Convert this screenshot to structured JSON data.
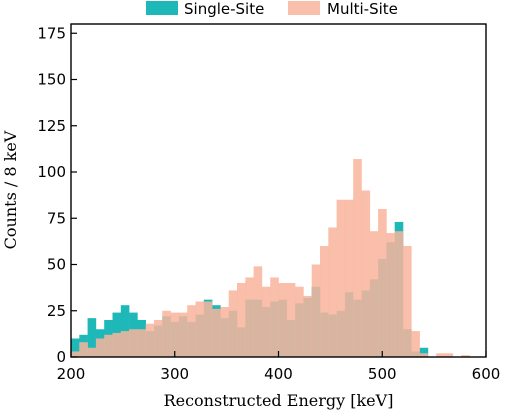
{
  "chart_data": {
    "type": "bar",
    "subtype": "overlaid-histogram",
    "xlabel": "Reconstructed Energy [keV]",
    "ylabel": "Counts / 8 keV",
    "xlim": [
      200,
      600
    ],
    "ylim": [
      0,
      180
    ],
    "xticks": [
      200,
      300,
      400,
      500,
      600
    ],
    "yticks": [
      0,
      25,
      50,
      75,
      100,
      125,
      150,
      175
    ],
    "bin_width": 8,
    "bin_edges_start": [
      200,
      208,
      216,
      224,
      232,
      240,
      248,
      256,
      264,
      272,
      280,
      288,
      296,
      304,
      312,
      320,
      328,
      336,
      344,
      352,
      360,
      368,
      376,
      384,
      392,
      400,
      408,
      416,
      424,
      432,
      440,
      448,
      456,
      464,
      472,
      480,
      488,
      496,
      504,
      512,
      520,
      528,
      536,
      544,
      552,
      560,
      568,
      576,
      584,
      592
    ],
    "grid": false,
    "legend_position": "top-center",
    "series": [
      {
        "name": "Single-Site",
        "color": "#1fb8b8",
        "values": [
          10,
          12,
          21,
          15,
          20,
          24,
          28,
          24,
          20,
          14,
          17,
          22,
          19,
          22,
          19,
          23,
          31,
          28,
          21,
          25,
          16,
          31,
          31,
          27,
          30,
          31,
          20,
          29,
          32,
          38,
          24,
          23,
          25,
          35,
          31,
          36,
          42,
          53,
          62,
          73,
          15,
          3,
          5,
          0,
          0,
          0,
          0,
          0,
          0,
          0
        ]
      },
      {
        "name": "Multi-Site",
        "color": "#f9b49b",
        "opacity": 0.85,
        "values": [
          3,
          8,
          5,
          10,
          12,
          13,
          14,
          15,
          15,
          18,
          20,
          25,
          24,
          24,
          28,
          30,
          30,
          26,
          27,
          36,
          40,
          43,
          49,
          38,
          43,
          40,
          40,
          38,
          33,
          50,
          60,
          70,
          85,
          85,
          107,
          90,
          68,
          80,
          67,
          68,
          60,
          14,
          2,
          0,
          2,
          2,
          0,
          1,
          0,
          0
        ]
      }
    ]
  }
}
